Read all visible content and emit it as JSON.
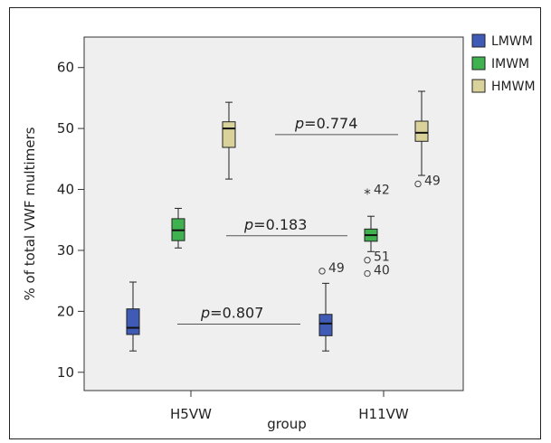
{
  "chart_data": {
    "type": "box",
    "xlabel": "group",
    "ylabel": "% of total VWF multimers",
    "ylim": [
      7,
      65
    ],
    "yticks": [
      10,
      20,
      30,
      40,
      50,
      60
    ],
    "categories": [
      "H5VW",
      "H11VW"
    ],
    "background": "#efefef",
    "legend": {
      "position": "right",
      "items": [
        {
          "name": "LMWM",
          "color": "#3f5bb5"
        },
        {
          "name": "IMWM",
          "color": "#3fb14f"
        },
        {
          "name": "HMWM",
          "color": "#d9d29a"
        }
      ]
    },
    "boxes": [
      {
        "group": "H5VW",
        "series": "LMWM",
        "min": 13.5,
        "q1": 16.2,
        "median": 17.3,
        "q3": 20.4,
        "max": 24.8,
        "outliers": []
      },
      {
        "group": "H5VW",
        "series": "IMWM",
        "min": 30.4,
        "q1": 31.6,
        "median": 33.3,
        "q3": 35.2,
        "max": 36.9,
        "outliers": []
      },
      {
        "group": "H5VW",
        "series": "HMWM",
        "min": 41.7,
        "q1": 46.9,
        "median": 50.0,
        "q3": 51.1,
        "max": 54.3,
        "outliers": []
      },
      {
        "group": "H11VW",
        "series": "LMWM",
        "min": 13.5,
        "q1": 16.0,
        "median": 18.0,
        "q3": 19.5,
        "max": 24.6,
        "outliers": [
          {
            "value": 26.6,
            "label": "49",
            "marker": "circle"
          }
        ]
      },
      {
        "group": "H11VW",
        "series": "IMWM",
        "min": 29.8,
        "q1": 31.5,
        "median": 32.5,
        "q3": 33.5,
        "max": 35.6,
        "outliers": [
          {
            "value": 39.4,
            "label": "42",
            "marker": "star"
          },
          {
            "value": 28.4,
            "label": "51",
            "marker": "circle"
          },
          {
            "value": 26.2,
            "label": "40",
            "marker": "circle"
          }
        ]
      },
      {
        "group": "H11VW",
        "series": "HMWM",
        "min": 42.3,
        "q1": 47.9,
        "median": 49.3,
        "q3": 51.2,
        "max": 56.1,
        "outliers": [
          {
            "value": 40.9,
            "label": "49",
            "marker": "circle"
          }
        ]
      }
    ],
    "annotations": [
      {
        "prefix": "p",
        "text": "=0.774",
        "y": 49.0
      },
      {
        "prefix": "p",
        "text": "=0.183",
        "y": 32.4
      },
      {
        "prefix": "p",
        "text": "=0.807",
        "y": 17.9
      }
    ]
  }
}
